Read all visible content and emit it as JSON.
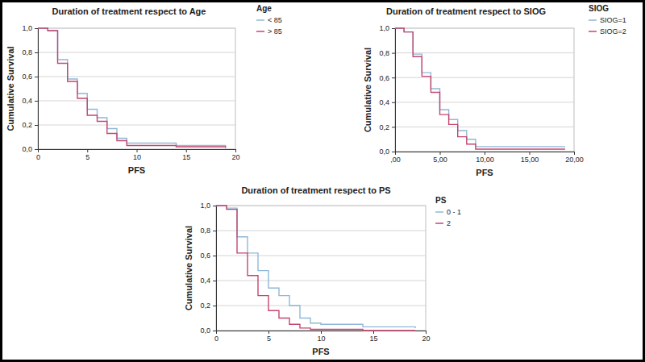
{
  "chart_data": [
    {
      "type": "line",
      "title": "Duration of treatment respect to Age",
      "x_label": "PFS",
      "y_label": "Cumulative Survival",
      "legend_title": "Age",
      "legend": "right",
      "grid": true,
      "line_style": "step",
      "x": [
        0,
        1,
        2,
        3,
        4,
        5,
        6,
        7,
        8,
        9,
        14,
        19
      ],
      "series": [
        {
          "name": "< 85",
          "color": "#8fb8d8",
          "values": [
            1.0,
            0.98,
            0.74,
            0.58,
            0.46,
            0.33,
            0.26,
            0.17,
            0.09,
            0.05,
            0.03,
            0.02
          ]
        },
        {
          "name": "> 85",
          "color": "#c4466f",
          "values": [
            1.0,
            0.98,
            0.71,
            0.56,
            0.42,
            0.28,
            0.23,
            0.13,
            0.07,
            0.03,
            0.02,
            0.01
          ]
        }
      ],
      "xlim": [
        0,
        20
      ],
      "xticks": [
        0,
        5,
        10,
        15,
        20
      ],
      "ylim": [
        0,
        1
      ],
      "yticks": [
        {
          "value": 0,
          "label": "0,0"
        },
        {
          "value": 0.2,
          "label": "0,2"
        },
        {
          "value": 0.4,
          "label": "0,4"
        },
        {
          "value": 0.6,
          "label": "0,6"
        },
        {
          "value": 0.8,
          "label": "0,8"
        },
        {
          "value": 1,
          "label": "1,0"
        }
      ]
    },
    {
      "type": "line",
      "title": "Duration of treatment respect to SIOG",
      "x_label": "PFS",
      "y_label": "Cumulative Survival",
      "legend_title": "SIOG",
      "legend": "right",
      "grid": true,
      "line_style": "step",
      "x": [
        0,
        1,
        2,
        3,
        4,
        5,
        6,
        7,
        8,
        9,
        19
      ],
      "series": [
        {
          "name": "SIOG=1",
          "color": "#8fb8d8",
          "values": [
            1.0,
            0.97,
            0.79,
            0.64,
            0.51,
            0.34,
            0.26,
            0.17,
            0.1,
            0.04,
            0.04
          ]
        },
        {
          "name": "SIOG=2",
          "color": "#c4466f",
          "values": [
            1.0,
            0.97,
            0.77,
            0.61,
            0.48,
            0.3,
            0.22,
            0.12,
            0.06,
            0.02,
            0.02
          ]
        }
      ],
      "xlim": [
        0,
        20
      ],
      "xticks": [
        {
          "value": 0,
          "label": ",00"
        },
        {
          "value": 5,
          "label": "5,00"
        },
        {
          "value": 10,
          "label": "10,00"
        },
        {
          "value": 15,
          "label": "15,00"
        },
        {
          "value": 20,
          "label": "20,00"
        }
      ],
      "ylim": [
        0,
        1
      ],
      "yticks": [
        {
          "value": 0,
          "label": "0,0"
        },
        {
          "value": 0.2,
          "label": "0,2"
        },
        {
          "value": 0.4,
          "label": "0,4"
        },
        {
          "value": 0.6,
          "label": "0,6"
        },
        {
          "value": 0.8,
          "label": "0,8"
        },
        {
          "value": 1,
          "label": "1,0"
        }
      ]
    },
    {
      "type": "line",
      "title": "Duration of treatment respect to PS",
      "x_label": "PFS",
      "y_label": "Cumulative Survival",
      "legend_title": "PS",
      "legend": "right",
      "grid": true,
      "line_style": "step",
      "x": [
        0,
        1,
        2,
        3,
        4,
        5,
        6,
        7,
        8,
        9,
        10,
        14,
        19
      ],
      "series": [
        {
          "name": "0 - 1",
          "color": "#8fb8d8",
          "values": [
            1.0,
            0.98,
            0.75,
            0.62,
            0.48,
            0.34,
            0.28,
            0.2,
            0.1,
            0.06,
            0.05,
            0.03,
            0.02
          ]
        },
        {
          "name": "2",
          "color": "#c4466f",
          "values": [
            1.0,
            0.97,
            0.62,
            0.44,
            0.28,
            0.16,
            0.1,
            0.05,
            0.02,
            0.01,
            0.01,
            0.0,
            0.0
          ]
        }
      ],
      "xlim": [
        0,
        20
      ],
      "xticks": [
        0,
        5,
        10,
        15,
        20
      ],
      "ylim": [
        0,
        1
      ],
      "yticks": [
        {
          "value": 0,
          "label": "0,0"
        },
        {
          "value": 0.2,
          "label": "0,2"
        },
        {
          "value": 0.4,
          "label": "0,4"
        },
        {
          "value": 0.6,
          "label": "0,6"
        },
        {
          "value": 0.8,
          "label": "0,8"
        },
        {
          "value": 1,
          "label": "1,0"
        }
      ]
    }
  ]
}
